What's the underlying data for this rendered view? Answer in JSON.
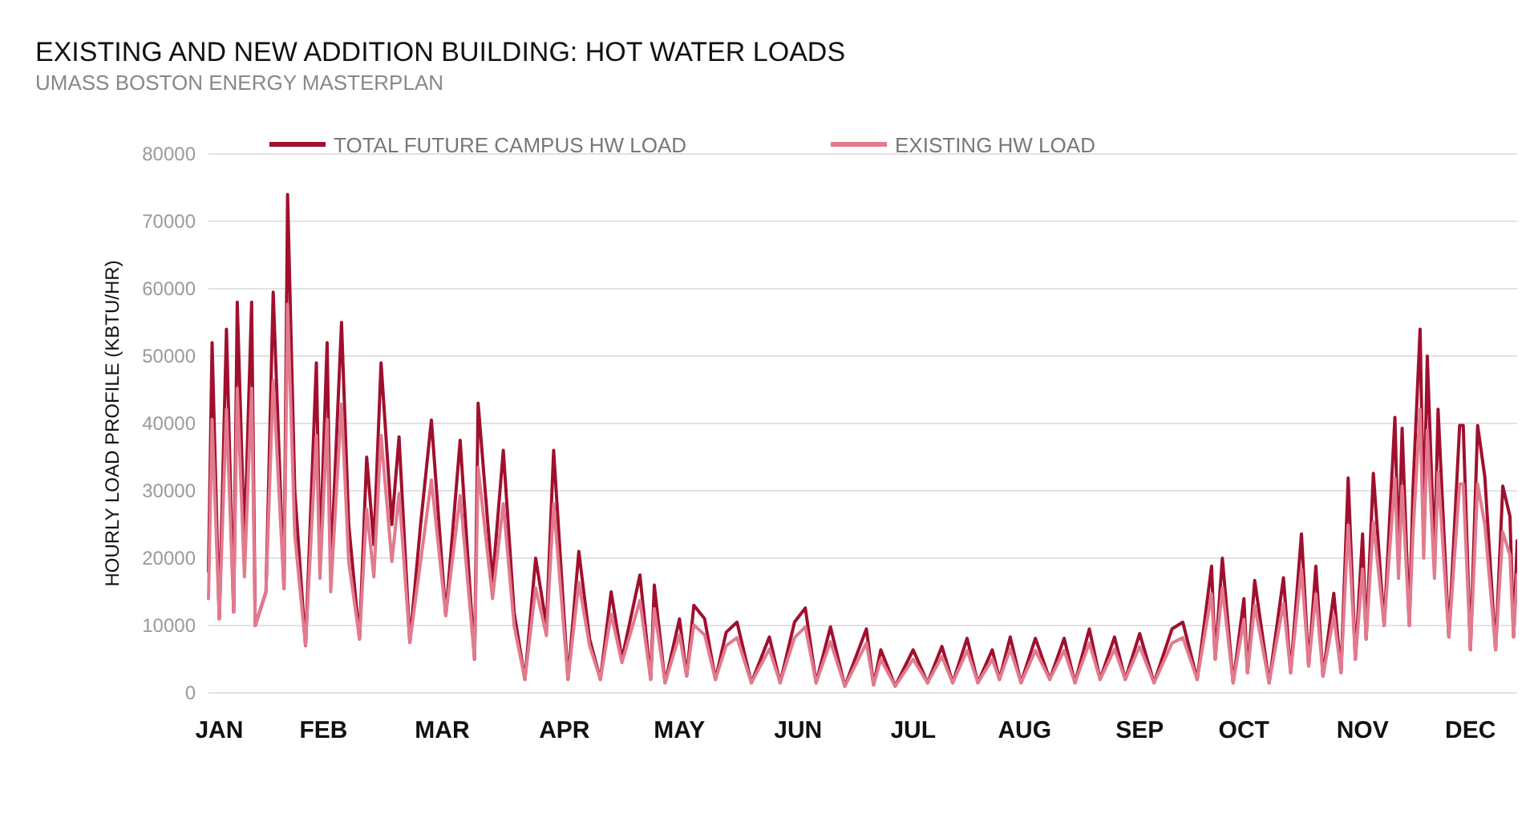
{
  "chart_data": {
    "type": "line",
    "title": "EXISTING AND NEW ADDITION BUILDING: HOT WATER LOADS",
    "subtitle": "UMASS BOSTON ENERGY MASTERPLAN",
    "ylabel": "HOURLY LOAD PROFILE (KBTU/HR)",
    "x": [
      "--01-01",
      "--01-02",
      "--01-04",
      "--01-06",
      "--01-08",
      "--01-09",
      "--01-11",
      "--01-13",
      "--01-14",
      "--01-17",
      "--01-19",
      "--01-22",
      "--01-23",
      "--01-25",
      "--01-28",
      "--01-31",
      "--02-01",
      "--02-03",
      "--02-04",
      "--02-07",
      "--02-09",
      "--02-12",
      "--02-14",
      "--02-16",
      "--02-18",
      "--02-21",
      "--02-23",
      "--02-26",
      "--03-01",
      "--03-04",
      "--03-08",
      "--03-12",
      "--03-16",
      "--03-17",
      "--03-21",
      "--03-24",
      "--03-27",
      "--03-30",
      "--04-02",
      "--04-05",
      "--04-07",
      "--04-11",
      "--04-14",
      "--04-17",
      "--04-20",
      "--04-23",
      "--04-26",
      "--05-01",
      "--05-04",
      "--05-05",
      "--05-08",
      "--05-12",
      "--05-14",
      "--05-16",
      "--05-19",
      "--05-22",
      "--05-25",
      "--05-28",
      "--06-01",
      "--06-06",
      "--06-09",
      "--06-13",
      "--06-16",
      "--06-19",
      "--06-23",
      "--06-27",
      "--07-03",
      "--07-05",
      "--07-07",
      "--07-11",
      "--07-16",
      "--07-20",
      "--07-24",
      "--07-27",
      "--07-31",
      "--08-03",
      "--08-07",
      "--08-09",
      "--08-12",
      "--08-15",
      "--08-19",
      "--08-23",
      "--08-27",
      "--08-30",
      "--09-03",
      "--09-06",
      "--09-10",
      "--09-13",
      "--09-17",
      "--09-21",
      "--09-26",
      "--09-29",
      "--10-03",
      "--10-07",
      "--10-08",
      "--10-10",
      "--10-13",
      "--10-16",
      "--10-17",
      "--10-19",
      "--10-23",
      "--10-27",
      "--10-29",
      "--11-01",
      "--11-03",
      "--11-05",
      "--11-07",
      "--11-10",
      "--11-12",
      "--11-14",
      "--11-16",
      "--11-18",
      "--11-19",
      "--11-21",
      "--11-24",
      "--11-27",
      "--11-28",
      "--11-29",
      "--12-01",
      "--12-02",
      "--12-04",
      "--12-05",
      "--12-06",
      "--12-08",
      "--12-09",
      "--12-12",
      "--12-15",
      "--12-16",
      "--12-18",
      "--12-20",
      "--12-22",
      "--12-25",
      "--12-27",
      "--12-29",
      "--12-30",
      "--12-31"
    ],
    "series": [
      {
        "name": "TOTAL FUTURE CAMPUS HW LOAD",
        "color": "#a0102e",
        "values": [
          18000,
          52000,
          11000,
          54000,
          12000,
          58000,
          22000,
          58000,
          10000,
          15000,
          59500,
          15500,
          74000,
          30000,
          7000,
          49000,
          20000,
          52000,
          18000,
          55000,
          25000,
          8000,
          35000,
          22000,
          49000,
          25000,
          38000,
          7500,
          25000,
          40500,
          11500,
          37500,
          5000,
          43000,
          16500,
          36000,
          12000,
          2000,
          20000,
          10000,
          36000,
          2000,
          21000,
          8000,
          2000,
          15000,
          5000,
          17500,
          2000,
          16000,
          1500,
          11000,
          2500,
          13000,
          11000,
          2000,
          9000,
          10500,
          1500,
          8300,
          1500,
          10500,
          12600,
          1500,
          9800,
          1000,
          9500,
          1200,
          6400,
          1000,
          6400,
          1500,
          6900,
          1500,
          8100,
          1500,
          6400,
          2000,
          8300,
          1500,
          8100,
          2000,
          8100,
          1500,
          9500,
          2000,
          8300,
          2000,
          8800,
          1500,
          9500,
          10500,
          2000,
          18800,
          5000,
          20000,
          1500,
          14000,
          3000,
          16700,
          1500,
          17100,
          3000,
          23600,
          4000,
          18800,
          2500,
          14800,
          3000,
          31900,
          5000,
          23600,
          8000,
          32600,
          10000,
          40900,
          20000,
          39300,
          10000,
          30000,
          54000,
          25000,
          50000,
          20000,
          42100,
          8300,
          39700,
          39700,
          6400,
          39700,
          32100,
          6400,
          30700,
          26200,
          8300,
          22600
        ]
      },
      {
        "name": "EXISTING HW LOAD",
        "color": "#e27a8e",
        "values": [
          14000,
          40600,
          11000,
          42100,
          12000,
          45200,
          17200,
          45200,
          10000,
          15000,
          46400,
          15500,
          57700,
          23400,
          7000,
          38200,
          17000,
          40600,
          15000,
          42900,
          19500,
          8000,
          27300,
          17200,
          38200,
          19500,
          29600,
          7500,
          19500,
          31600,
          11500,
          29300,
          5000,
          33500,
          14000,
          28100,
          10000,
          2000,
          15600,
          8500,
          28100,
          2000,
          16400,
          7000,
          2000,
          11700,
          4500,
          13700,
          2000,
          12500,
          1500,
          8600,
          2500,
          10100,
          8600,
          2000,
          7000,
          8200,
          1500,
          6500,
          1500,
          8200,
          9800,
          1500,
          7600,
          1000,
          7400,
          1200,
          5000,
          1000,
          5000,
          1500,
          5400,
          1500,
          6300,
          1500,
          5000,
          2000,
          6500,
          1500,
          6300,
          2000,
          6300,
          1500,
          7400,
          2000,
          6500,
          2000,
          6900,
          1500,
          7400,
          8200,
          2000,
          14700,
          5000,
          15600,
          1500,
          10900,
          3000,
          13000,
          1500,
          13300,
          3000,
          18400,
          4000,
          14700,
          2500,
          11500,
          3000,
          24900,
          5000,
          18400,
          8000,
          25400,
          10000,
          31900,
          17000,
          30700,
          10000,
          23400,
          42100,
          20000,
          39000,
          17000,
          32800,
          8300,
          31000,
          31000,
          6400,
          31000,
          25000,
          6400,
          23900,
          20400,
          8300,
          17600
        ]
      }
    ],
    "xlim": [
      "--01-01",
      "--12-31"
    ],
    "xticks": [
      {
        "value": "--01-04",
        "label": "JAN"
      },
      {
        "value": "--02-02",
        "label": "FEB"
      },
      {
        "value": "--03-07",
        "label": "MAR"
      },
      {
        "value": "--04-10",
        "label": "APR"
      },
      {
        "value": "--05-12",
        "label": "MAY"
      },
      {
        "value": "--06-14",
        "label": "JUN"
      },
      {
        "value": "--07-16",
        "label": "JUL"
      },
      {
        "value": "--08-16",
        "label": "AUG"
      },
      {
        "value": "--09-17",
        "label": "SEP"
      },
      {
        "value": "--10-16",
        "label": "OCT"
      },
      {
        "value": "--11-18",
        "label": "NOV"
      },
      {
        "value": "--12-18",
        "label": "DEC"
      }
    ],
    "ylim": [
      0,
      80000
    ],
    "yticks": [
      0,
      10000,
      20000,
      30000,
      40000,
      50000,
      60000,
      70000,
      80000
    ],
    "grid": "y",
    "legend": "top",
    "marker": "none",
    "line_style": "solid"
  }
}
